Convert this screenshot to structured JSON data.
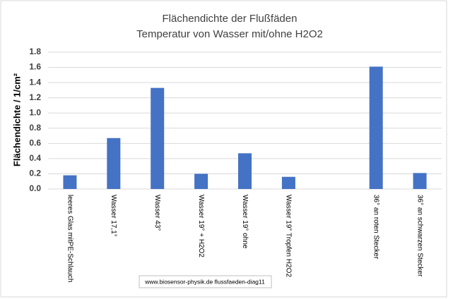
{
  "chart_data": {
    "type": "bar",
    "title": "Flächendichte der Flußfäden",
    "subtitle": "Temperatur von Wasser  mit/ohne H2O2",
    "y_label": "Flächendichte / 1/cm²",
    "annotation": "www.biosensor-physik.de  flussfaeden-diag11",
    "categories": [
      "leeres Glas mitPE-Schlauch",
      "Wasser 17,1°",
      "Wasser 43°",
      "Wasser 19° + H2O2",
      "Wasser 19° ohne",
      "Wasser 19° Tropfen H2O2",
      null,
      "36° an roten Stecker",
      "36° an schwarzen Stecker"
    ],
    "values": [
      0.18,
      0.67,
      1.33,
      0.2,
      0.47,
      0.16,
      null,
      1.61,
      0.21
    ],
    "color": "#4472c4",
    "ylim": [
      0,
      1.8
    ],
    "yticks": [
      {
        "value": 0,
        "label": "0.0"
      },
      0.2,
      0.4,
      0.6,
      0.8,
      {
        "value": 1,
        "label": "1.0"
      },
      1.2,
      1.4,
      1.6,
      1.8
    ],
    "grid": true
  }
}
